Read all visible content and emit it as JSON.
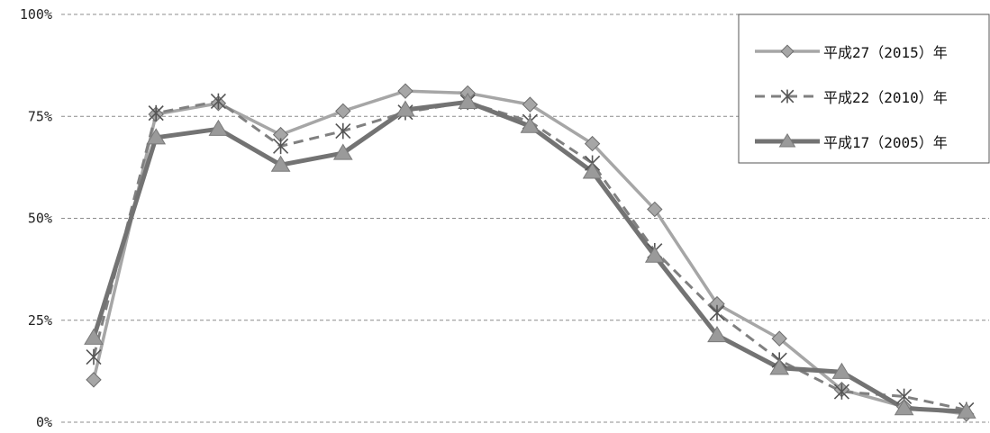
{
  "chart_data": {
    "type": "line",
    "x": [
      1,
      2,
      3,
      4,
      5,
      6,
      7,
      8,
      9,
      10,
      11,
      12,
      13,
      14,
      15
    ],
    "ylim": [
      0,
      1
    ],
    "yticks": [
      {
        "value": 0,
        "label": "0%"
      },
      {
        "value": 0.25,
        "label": "25%"
      },
      {
        "value": 0.5,
        "label": "50%"
      },
      {
        "value": 0.75,
        "label": "75%"
      },
      {
        "value": 1,
        "label": "100%"
      }
    ],
    "grid": "horizontal-dashed",
    "legend_position": "top-right",
    "series": [
      {
        "name": "平成27（2015）年",
        "color": "#a6a6a6",
        "line_style": "solid",
        "marker": "diamond",
        "values": [
          0.104,
          0.755,
          0.782,
          0.705,
          0.763,
          0.812,
          0.807,
          0.779,
          0.683,
          0.522,
          0.29,
          0.205,
          0.08,
          0.038,
          0.02
        ]
      },
      {
        "name": "平成22（2010）年",
        "color": "#808080",
        "line_style": "dashed",
        "marker": "asterisk",
        "values": [
          0.16,
          0.758,
          0.787,
          0.677,
          0.714,
          0.76,
          0.785,
          0.737,
          0.635,
          0.42,
          0.268,
          0.152,
          0.075,
          0.063,
          0.03
        ]
      },
      {
        "name": "平成17（2005）年",
        "color": "#737373",
        "line_style": "solid-thick",
        "marker": "triangle",
        "values": [
          0.207,
          0.698,
          0.719,
          0.631,
          0.66,
          0.766,
          0.785,
          0.726,
          0.614,
          0.408,
          0.213,
          0.133,
          0.123,
          0.034,
          0.026
        ]
      }
    ]
  }
}
